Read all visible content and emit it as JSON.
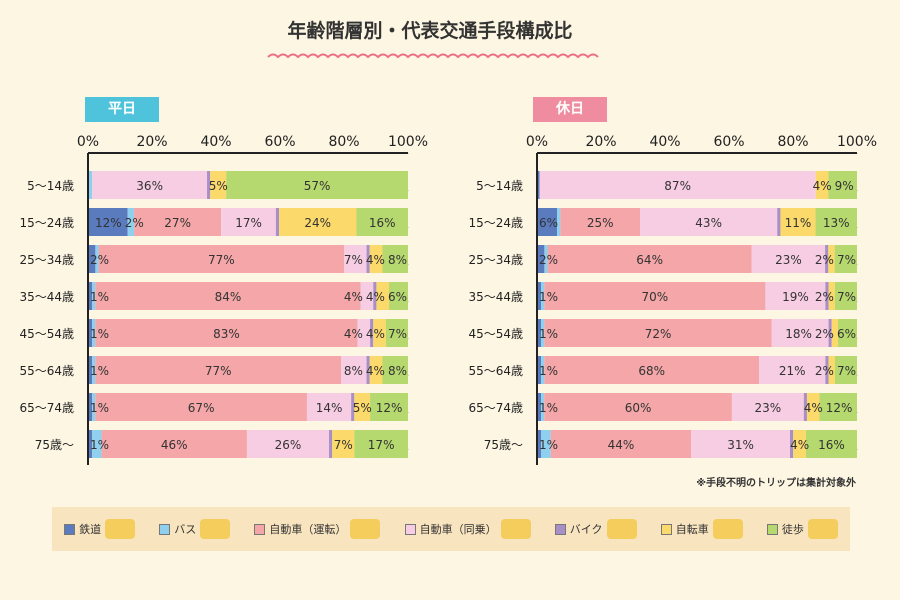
{
  "title": "年齢階層別・代表交通手段構成比",
  "note": "※手段不明のトリップは集計対象外",
  "colors": {
    "鉄道": "#5b7bbf",
    "バス": "#8fd0ef",
    "自動車（運転）": "#f4a6a8",
    "自動車（同乗）": "#f7cde3",
    "バイク": "#a98fc8",
    "自転車": "#fbd96a",
    "徒歩": "#b5d86f"
  },
  "legend": [
    {
      "label": "鉄道",
      "icon": "train-icon"
    },
    {
      "label": "バス",
      "icon": "bus-icon"
    },
    {
      "label": "自動車（運転）",
      "icon": "car-icon"
    },
    {
      "label": "自動車（同乗）",
      "icon": "car-icon"
    },
    {
      "label": "バイク",
      "icon": "scooter-icon"
    },
    {
      "label": "自転車",
      "icon": "bicycle-icon"
    },
    {
      "label": "徒歩",
      "icon": "walker-icon"
    }
  ],
  "chart_data": [
    {
      "type": "bar",
      "stacked": true,
      "orientation": "horizontal",
      "title": "平日",
      "title_color": "#4fc3dc",
      "x_ticks": [
        "0%",
        "20%",
        "40%",
        "60%",
        "80%",
        "100%"
      ],
      "xlim": [
        0,
        100
      ],
      "categories": [
        "5～14歳",
        "15～24歳",
        "25～34歳",
        "35～44歳",
        "45～54歳",
        "55～64歳",
        "65～74歳",
        "75歳～"
      ],
      "series": [
        {
          "name": "鉄道",
          "values": [
            0,
            12,
            2,
            1,
            1,
            1,
            1,
            1
          ],
          "labels": [
            "",
            "12%",
            "2%",
            "1%",
            "1%",
            "1%",
            "1%",
            "1%"
          ]
        },
        {
          "name": "バス",
          "values": [
            1,
            2,
            1,
            1,
            1,
            1,
            1,
            3
          ],
          "labels": [
            "",
            "2%",
            "",
            "",
            "",
            "",
            "",
            ""
          ]
        },
        {
          "name": "自動車（運転）",
          "values": [
            0,
            27,
            77,
            84,
            83,
            77,
            67,
            46
          ],
          "labels": [
            "",
            "27%",
            "77%",
            "84%",
            "83%",
            "77%",
            "67%",
            "46%"
          ]
        },
        {
          "name": "自動車（同乗）",
          "values": [
            36,
            17,
            7,
            4,
            4,
            8,
            14,
            26
          ],
          "labels": [
            "36%",
            "17%",
            "7%",
            "4%",
            "4%",
            "8%",
            "14%",
            "26%"
          ]
        },
        {
          "name": "バイク",
          "values": [
            1,
            1,
            1,
            1,
            1,
            1,
            1,
            1
          ],
          "labels": [
            "",
            "",
            "",
            "",
            "",
            "",
            "",
            ""
          ]
        },
        {
          "name": "自転車",
          "values": [
            5,
            24,
            4,
            4,
            4,
            4,
            5,
            7
          ],
          "labels": [
            "5%",
            "24%",
            "4%",
            "4%",
            "4%",
            "4%",
            "5%",
            "7%"
          ]
        },
        {
          "name": "徒歩",
          "values": [
            57,
            16,
            8,
            6,
            7,
            8,
            12,
            17
          ],
          "labels": [
            "57%",
            "16%",
            "8%",
            "6%",
            "7%",
            "8%",
            "12%",
            "17%"
          ]
        }
      ]
    },
    {
      "type": "bar",
      "stacked": true,
      "orientation": "horizontal",
      "title": "休日",
      "title_color": "#f08ca0",
      "x_ticks": [
        "0%",
        "20%",
        "40%",
        "60%",
        "80%",
        "100%"
      ],
      "xlim": [
        0,
        100
      ],
      "categories": [
        "5～14歳",
        "15～24歳",
        "25～34歳",
        "35～44歳",
        "45～54歳",
        "55～64歳",
        "65～74歳",
        "75歳～"
      ],
      "series": [
        {
          "name": "鉄道",
          "values": [
            0.5,
            6,
            2,
            1,
            1,
            1,
            1,
            1
          ],
          "labels": [
            "",
            "6%",
            "2%",
            "1%",
            "1%",
            "1%",
            "1%",
            "1%"
          ]
        },
        {
          "name": "バス",
          "values": [
            0,
            1,
            1,
            1,
            1,
            1,
            1,
            3
          ],
          "labels": [
            "",
            "",
            "",
            "",
            "",
            "",
            "",
            ""
          ]
        },
        {
          "name": "自動車（運転）",
          "values": [
            0,
            25,
            64,
            70,
            72,
            68,
            60,
            44
          ],
          "labels": [
            "",
            "25%",
            "64%",
            "70%",
            "72%",
            "68%",
            "60%",
            "44%"
          ]
        },
        {
          "name": "自動車（同乗）",
          "values": [
            87,
            43,
            23,
            19,
            18,
            21,
            23,
            31
          ],
          "labels": [
            "87%",
            "43%",
            "23%",
            "19%",
            "18%",
            "21%",
            "23%",
            "31%"
          ]
        },
        {
          "name": "バイク",
          "values": [
            0,
            1,
            1,
            1,
            1,
            1,
            1,
            1
          ],
          "labels": [
            "",
            "",
            "",
            "",
            "",
            "",
            "",
            ""
          ]
        },
        {
          "name": "自転車",
          "values": [
            4,
            11,
            2,
            2,
            2,
            2,
            4,
            4
          ],
          "labels": [
            "4%",
            "11%",
            "2%",
            "2%",
            "2%",
            "2%",
            "4%",
            "4%"
          ]
        },
        {
          "name": "徒歩",
          "values": [
            9,
            13,
            7,
            7,
            6,
            7,
            12,
            16
          ],
          "labels": [
            "9%",
            "13%",
            "7%",
            "7%",
            "6%",
            "7%",
            "12%",
            "16%"
          ]
        }
      ]
    }
  ]
}
